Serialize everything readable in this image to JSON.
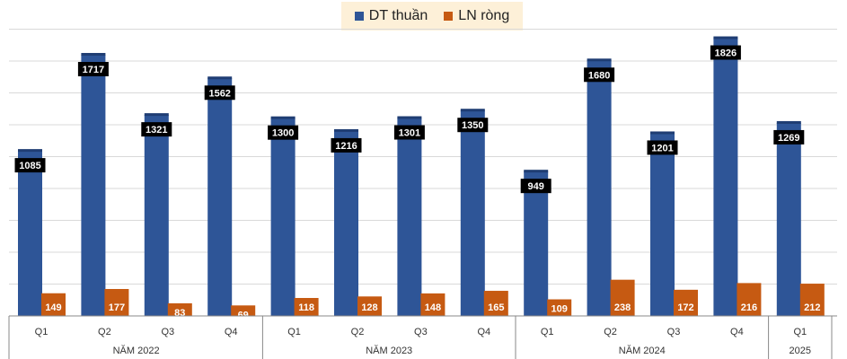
{
  "chart_data": {
    "type": "bar",
    "legend_position": "top-center",
    "grid": true,
    "ylim": [
      0,
      1900
    ],
    "colors": {
      "revenue": "#2e5597",
      "profit": "#c65a12",
      "legend_bg": "#fdf0d8"
    },
    "legend": [
      {
        "key": "revenue",
        "label": "DT thuần"
      },
      {
        "key": "profit",
        "label": "LN ròng"
      }
    ],
    "groups": [
      {
        "label": "NĂM 2022",
        "quarters": [
          "Q1",
          "Q2",
          "Q3",
          "Q4"
        ]
      },
      {
        "label": "NĂM 2023",
        "quarters": [
          "Q1",
          "Q2",
          "Q3",
          "Q4"
        ]
      },
      {
        "label": "NĂM 2024",
        "quarters": [
          "Q1",
          "Q2",
          "Q3",
          "Q4"
        ]
      },
      {
        "label": "2025",
        "quarters": [
          "Q1"
        ]
      }
    ],
    "series": [
      {
        "name": "DT thuần",
        "key": "revenue",
        "values": [
          1085,
          1717,
          1321,
          1562,
          1300,
          1216,
          1301,
          1350,
          949,
          1680,
          1201,
          1826,
          1269
        ]
      },
      {
        "name": "LN ròng",
        "key": "profit",
        "values": [
          149,
          177,
          83,
          69,
          118,
          128,
          148,
          165,
          109,
          238,
          172,
          216,
          212
        ]
      }
    ]
  }
}
